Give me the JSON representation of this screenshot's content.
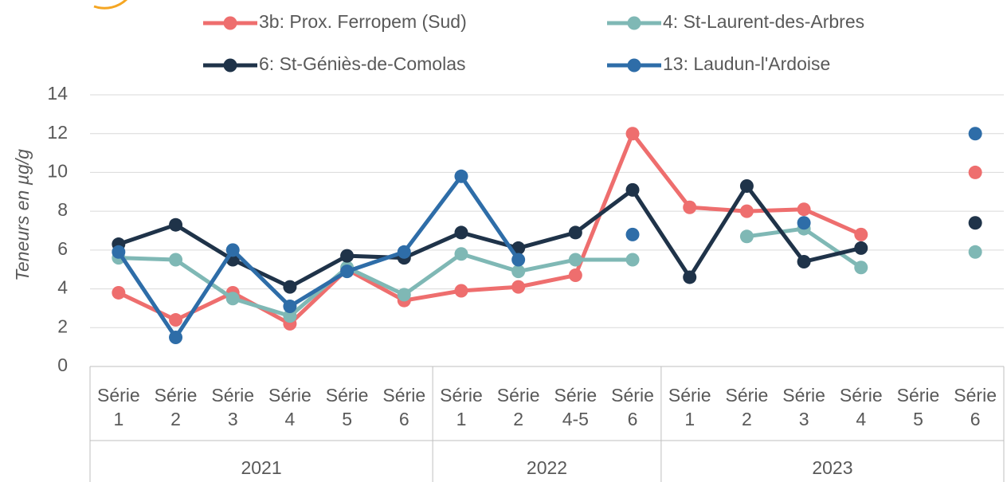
{
  "chart_data": {
    "type": "line",
    "y_axis_label": "Teneurs en µg/g",
    "categories": [
      "Série 1",
      "Série 2",
      "Série 3",
      "Série 4",
      "Série 5",
      "Série 6",
      "Série 1",
      "Série 2",
      "Série 4-5",
      "Série 6",
      "Série 1",
      "Série 2",
      "Série 3",
      "Série 4",
      "Série 5",
      "Série 6"
    ],
    "groups": [
      {
        "label": "2021",
        "count": 6
      },
      {
        "label": "2022",
        "count": 4
      },
      {
        "label": "2023",
        "count": 6
      }
    ],
    "series": [
      {
        "name": "3b: Prox. Ferropem (Sud)",
        "color": "#ee6e6e",
        "values": [
          3.8,
          2.4,
          3.8,
          2.2,
          5.0,
          3.4,
          3.9,
          4.1,
          4.7,
          12.0,
          8.2,
          8.0,
          8.1,
          6.8,
          null,
          10.0
        ]
      },
      {
        "name": "4: St-Laurent-des-Arbres",
        "color": "#7fb8b5",
        "values": [
          5.6,
          5.5,
          3.5,
          2.6,
          5.1,
          3.7,
          5.8,
          4.9,
          5.5,
          5.5,
          null,
          6.7,
          7.1,
          5.1,
          null,
          5.9
        ]
      },
      {
        "name": "6: St-Géniès-de-Comolas",
        "color": "#1f3349",
        "values": [
          6.3,
          7.3,
          5.5,
          4.1,
          5.7,
          5.6,
          6.9,
          6.1,
          6.9,
          9.1,
          4.6,
          9.3,
          5.4,
          6.1,
          null,
          7.4
        ]
      },
      {
        "name": "13: Laudun-l'Ardoise",
        "color": "#2e6da8",
        "values": [
          5.9,
          1.5,
          6.0,
          3.1,
          4.9,
          5.9,
          9.8,
          5.5,
          null,
          6.8,
          null,
          null,
          7.4,
          null,
          null,
          12.0
        ]
      }
    ],
    "ylim": [
      0,
      14
    ],
    "yticks": [
      0,
      2,
      4,
      6,
      8,
      10,
      12,
      14
    ],
    "grid": true
  }
}
